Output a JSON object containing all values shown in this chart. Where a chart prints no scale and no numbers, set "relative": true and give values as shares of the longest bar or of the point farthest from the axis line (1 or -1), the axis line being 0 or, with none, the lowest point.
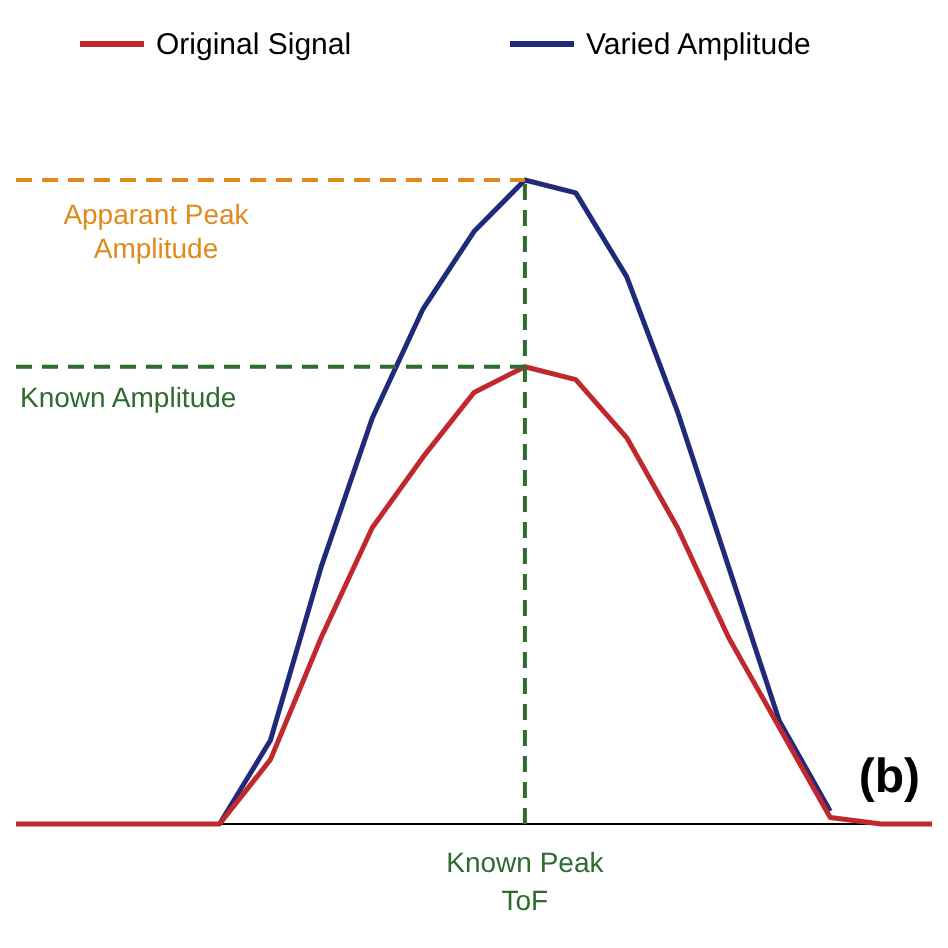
{
  "chart_data": {
    "type": "line",
    "relative": true,
    "legend": "top",
    "categories": [
      null,
      null,
      null,
      null,
      null,
      null,
      null,
      null,
      null,
      null,
      null,
      null,
      null,
      null,
      null,
      null,
      null,
      null,
      null
    ],
    "series": [
      {
        "name": "Original Signal",
        "color": "#c0282d",
        "values": [
          0,
          0,
          0,
          0,
          0,
          0.1,
          0.29,
          0.46,
          0.57,
          0.67,
          0.71,
          0.69,
          0.6,
          0.46,
          0.29,
          0.15,
          0.01,
          0,
          0
        ]
      },
      {
        "name": "Varied Amplitude",
        "color": "#1f2a7a",
        "values": [
          null,
          null,
          null,
          null,
          0,
          0.13,
          0.4,
          0.63,
          0.8,
          0.92,
          1,
          0.98,
          0.85,
          0.64,
          0.4,
          0.16,
          0.02,
          null,
          null
        ]
      }
    ],
    "ref_lines": [
      {
        "axis": "y",
        "value": 1,
        "label": "Apparant Peak Amplitude",
        "color": "#e08a1e",
        "line_style": "dashed"
      },
      {
        "axis": "y",
        "value": 0.71,
        "label": "Known Amplitude",
        "color": "#2e6b2e",
        "line_style": "dashed"
      },
      {
        "axis": "x",
        "label": "Known Peak ToF",
        "color": "#2e6b2e",
        "line_style": "dashed"
      }
    ],
    "annotations": [
      "(b)"
    ]
  }
}
